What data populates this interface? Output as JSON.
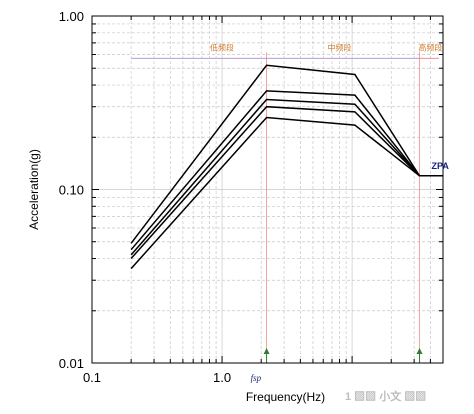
{
  "chart_data": {
    "type": "line",
    "x_scale": "log",
    "y_scale": "log",
    "xlim": [
      0.1,
      50
    ],
    "ylim": [
      0.01,
      1
    ],
    "xlabel": "Frequency(Hz)",
    "ylabel": "Acceleration(g)",
    "x_tick_labels": [
      "0.1",
      "1.0"
    ],
    "x_tick_values": [
      0.1,
      1.0
    ],
    "y_tick_labels": [
      "0.01",
      "0.10",
      "1.00"
    ],
    "y_tick_values": [
      0.01,
      0.1,
      1.0
    ],
    "grid": true,
    "series": [
      {
        "x": [
          0.2,
          2.2,
          10.5,
          33,
          50
        ],
        "y": [
          0.049,
          0.52,
          0.46,
          0.12,
          0.12
        ]
      },
      {
        "x": [
          0.2,
          2.2,
          10.5,
          33,
          50
        ],
        "y": [
          0.045,
          0.37,
          0.35,
          0.12,
          0.12
        ]
      },
      {
        "x": [
          0.2,
          2.2,
          10.5,
          33,
          50
        ],
        "y": [
          0.042,
          0.33,
          0.31,
          0.12,
          0.12
        ]
      },
      {
        "x": [
          0.2,
          2.2,
          10.5,
          33,
          50
        ],
        "y": [
          0.04,
          0.3,
          0.28,
          0.12,
          0.12
        ]
      },
      {
        "x": [
          0.2,
          2.2,
          10.5,
          33,
          50
        ],
        "y": [
          0.035,
          0.26,
          0.235,
          0.12,
          0.12
        ]
      }
    ],
    "band_labels": [
      "低频段",
      "中频段",
      "高频段"
    ],
    "band_label_x": [
      1.0,
      8.0,
      40.0
    ],
    "band_line_y": 0.57,
    "band_boundaries_x": [
      2.2,
      33
    ],
    "fsp_label": "fsp",
    "fsp_x": 2.2,
    "zpa_label": "ZPA",
    "zpa_x": 33,
    "zpa_y": 0.12,
    "colors": {
      "curve": "#000000",
      "band_line": "#b39ddb",
      "band_boundary": "#f28b8b",
      "band_text": "#d07a2a",
      "marker": "#2e7d32",
      "zpa": "#1a237e"
    }
  },
  "watermark": {
    "text": "1 ▧▧ 小文 ▧▧"
  }
}
